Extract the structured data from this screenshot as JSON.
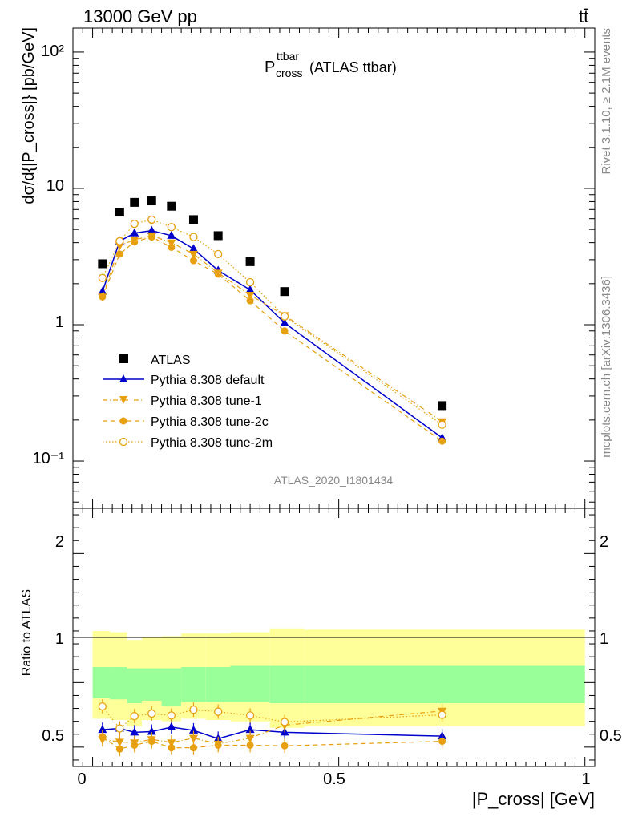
{
  "header": {
    "energy_label": "13000 GeV pp",
    "process_label": "tt̄"
  },
  "main_panel": {
    "title_main": "P",
    "title_sup": "ttbar",
    "title_sub": "cross",
    "title_suffix": "(ATLAS ttbar)",
    "y_axis_label": "dσ/d{|P_cross|} [pb/GeV]",
    "y_ticks": [
      "10⁻¹",
      "1",
      "10",
      "10²"
    ],
    "analysis_label": "ATLAS_2020_I1801434"
  },
  "ratio_panel": {
    "y_axis_label": "Ratio to ATLAS",
    "y_ticks": [
      "0.5",
      "1",
      "2"
    ]
  },
  "x_axis": {
    "label": "|P_cross| [GeV]",
    "ticks": [
      "0",
      "0.5",
      "1"
    ]
  },
  "side_labels": {
    "rivet": "Rivet 3.1.10, ≥ 2.1M events",
    "mcplots": "mcplots.cern.ch [arXiv:1306.3436]"
  },
  "legend": [
    {
      "label": "ATLAS"
    },
    {
      "label": "Pythia 8.308 default"
    },
    {
      "label": "Pythia 8.308 tune-1"
    },
    {
      "label": "Pythia 8.308 tune-2c"
    },
    {
      "label": "Pythia 8.308 tune-2m"
    }
  ],
  "chart_data": {
    "type": "scatter",
    "x_range": [
      -0.04,
      1.02
    ],
    "y_range_main": [
      0.045,
      150
    ],
    "y_scale_main": "log",
    "y_range_ratio": [
      0.35,
      2.35
    ],
    "colors": {
      "data": "#000000",
      "default": "#0000cc",
      "tunes": "#e6a010",
      "band_inner": "#99ff99",
      "band_outer": "#ffff99"
    },
    "x": [
      0.02,
      0.055,
      0.085,
      0.12,
      0.16,
      0.205,
      0.255,
      0.32,
      0.39,
      0.71
    ],
    "bins": [
      [
        0,
        0.035
      ],
      [
        0.035,
        0.07
      ],
      [
        0.07,
        0.1
      ],
      [
        0.1,
        0.14
      ],
      [
        0.14,
        0.18
      ],
      [
        0.18,
        0.23
      ],
      [
        0.23,
        0.28
      ],
      [
        0.28,
        0.36
      ],
      [
        0.36,
        0.43
      ],
      [
        0.43,
        1.0
      ]
    ],
    "data": [
      2.8,
      6.7,
      7.9,
      8.1,
      7.4,
      5.9,
      4.5,
      2.9,
      1.75,
      0.255
    ],
    "band_inner": [
      [
        0.88,
        1.12
      ],
      [
        0.87,
        1.12
      ],
      [
        0.84,
        1.11
      ],
      [
        0.86,
        1.11
      ],
      [
        0.82,
        1.11
      ],
      [
        0.85,
        1.12
      ],
      [
        0.85,
        1.12
      ],
      [
        0.85,
        1.13
      ],
      [
        0.84,
        1.13
      ],
      [
        0.84,
        1.13
      ]
    ],
    "band_outer": [
      [
        0.72,
        1.4
      ],
      [
        0.71,
        1.39
      ],
      [
        0.66,
        1.33
      ],
      [
        0.71,
        1.35
      ],
      [
        0.7,
        1.36
      ],
      [
        0.72,
        1.38
      ],
      [
        0.71,
        1.38
      ],
      [
        0.7,
        1.39
      ],
      [
        0.65,
        1.42
      ],
      [
        0.66,
        1.41
      ]
    ],
    "series": [
      {
        "name": "Pythia 8.308 default",
        "style": "solid",
        "marker": "triangle-up",
        "values": [
          1.75,
          4.1,
          4.7,
          4.9,
          4.5,
          3.6,
          2.5,
          1.8,
          1.03,
          0.148
        ],
        "ratio": [
          0.635,
          0.645,
          0.615,
          0.62,
          0.655,
          0.63,
          0.565,
          0.635,
          0.615,
          0.585
        ]
      },
      {
        "name": "Pythia 8.308 tune-1",
        "style": "dashdot",
        "marker": "triangle-down",
        "values": [
          1.6,
          3.8,
          4.2,
          4.5,
          4.0,
          3.3,
          2.4,
          1.65,
          1.17,
          0.195
        ],
        "ratio": [
          0.56,
          0.54,
          0.535,
          0.56,
          0.535,
          0.57,
          0.525,
          0.57,
          0.67,
          0.78
        ]
      },
      {
        "name": "Pythia 8.308 tune-2c",
        "style": "dashed",
        "marker": "circle",
        "values": [
          1.6,
          3.3,
          4.05,
          4.4,
          3.7,
          2.95,
          2.35,
          1.5,
          0.9,
          0.14
        ],
        "ratio": [
          0.58,
          0.485,
          0.515,
          0.545,
          0.495,
          0.495,
          0.515,
          0.515,
          0.51,
          0.545
        ]
      },
      {
        "name": "Pythia 8.308 tune-2m",
        "style": "dotted",
        "marker": "open-circle",
        "values": [
          2.2,
          4.1,
          5.5,
          5.9,
          5.2,
          4.4,
          3.3,
          2.05,
          1.15,
          0.185
        ],
        "ratio": [
          0.815,
          0.645,
          0.74,
          0.76,
          0.745,
          0.79,
          0.775,
          0.745,
          0.695,
          0.75
        ]
      }
    ]
  }
}
